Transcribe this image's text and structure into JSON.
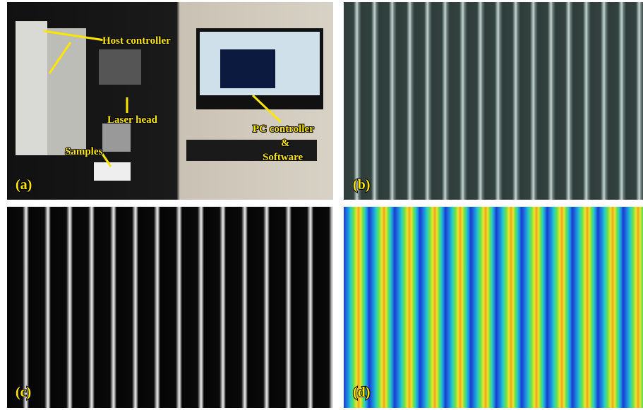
{
  "panels": [
    {
      "label": "(a)",
      "annotations": {
        "host": "Host controller",
        "laser": "Laser head",
        "samples": "Samples",
        "pc1": "PC controller",
        "pc2": "&",
        "pc3": "Software"
      }
    },
    {
      "label": "(b)"
    },
    {
      "label": "(c)"
    },
    {
      "label": "(d)"
    }
  ]
}
